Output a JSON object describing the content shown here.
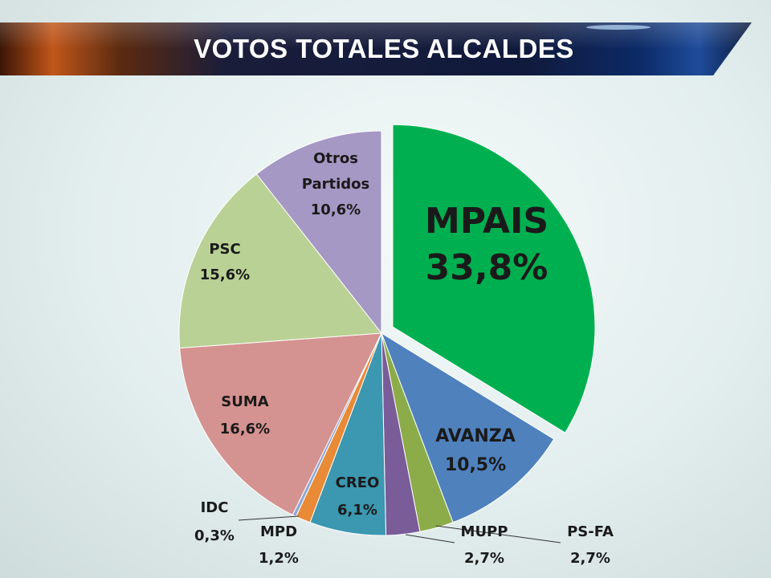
{
  "title": "VOTOS TOTALES ALCALDES",
  "chart_data": {
    "type": "pie",
    "title": "VOTOS TOTALES ALCALDES",
    "slices": [
      {
        "label": "MPAIS",
        "value": 33.8,
        "display": "33,8%",
        "color": "#00b050"
      },
      {
        "label": "AVANZA",
        "value": 10.5,
        "display": "10,5%",
        "color": "#4f81bd"
      },
      {
        "label": "PS-FA",
        "value": 2.7,
        "display": "2,7%",
        "color": "#8cac49"
      },
      {
        "label": "MUPP",
        "value": 2.7,
        "display": "2,7%",
        "color": "#7a5c99"
      },
      {
        "label": "CREO",
        "value": 6.1,
        "display": "6,1%",
        "color": "#3c97b0"
      },
      {
        "label": "MPD",
        "value": 1.2,
        "display": "1,2%",
        "color": "#e98a36"
      },
      {
        "label": "IDC",
        "value": 0.3,
        "display": "0,3%",
        "color": "#8eaad5"
      },
      {
        "label": "SUMA",
        "value": 16.6,
        "display": "16,6%",
        "color": "#d49290"
      },
      {
        "label": "PSC",
        "value": 15.6,
        "display": "15,6%",
        "color": "#bad195"
      },
      {
        "label": "Otros Partidos",
        "value": 10.6,
        "display": "10,6%",
        "color": "#a698c4"
      }
    ],
    "exploded": "MPAIS",
    "legend": "none"
  }
}
